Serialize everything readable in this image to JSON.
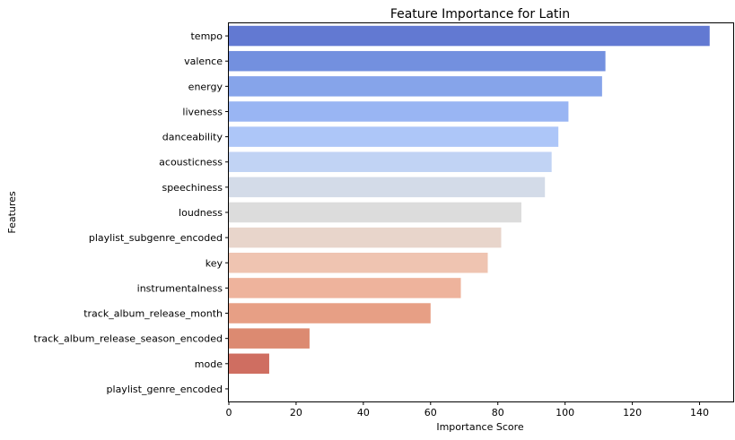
{
  "chart_data": {
    "type": "bar",
    "orientation": "horizontal",
    "title": "Feature Importance for Latin",
    "xlabel": "Importance Score",
    "ylabel": "Features",
    "categories": [
      "tempo",
      "valence",
      "energy",
      "liveness",
      "danceability",
      "acousticness",
      "speechiness",
      "loudness",
      "playlist_subgenre_encoded",
      "key",
      "instrumentalness",
      "track_album_release_month",
      "track_album_release_season_encoded",
      "mode",
      "playlist_genre_encoded"
    ],
    "values": [
      143,
      112,
      111,
      101,
      98,
      96,
      94,
      87,
      81,
      77,
      69,
      60,
      24,
      12,
      0
    ],
    "xlim": [
      0,
      150
    ],
    "xticks": [
      0,
      20,
      40,
      60,
      80,
      100,
      120,
      140
    ],
    "grid": false,
    "colors": [
      "#6279d2",
      "#7390df",
      "#86a4ea",
      "#99b5f3",
      "#adc6f8",
      "#c1d3f4",
      "#d3dbe8",
      "#dcdcdc",
      "#e8d5cb",
      "#efc4b1",
      "#eeb39c",
      "#e79f85",
      "#dc8a71",
      "#cf6e61",
      "#bf4f4d"
    ]
  }
}
